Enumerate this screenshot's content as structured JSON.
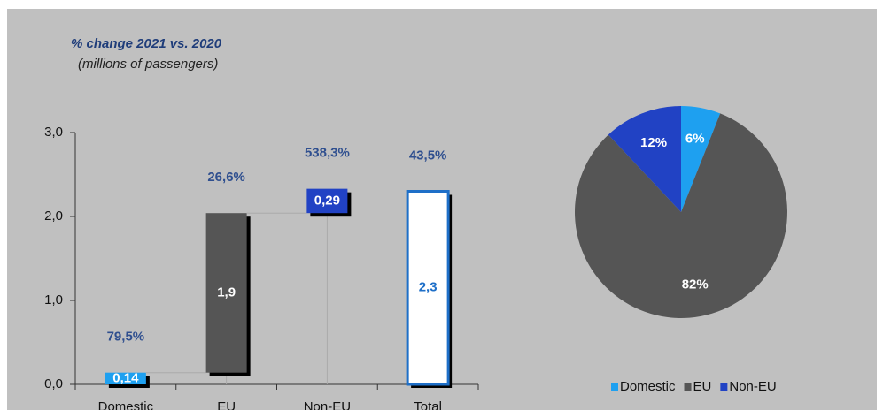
{
  "chart_data": [
    {
      "type": "waterfall",
      "title": "% change 2021 vs. 2020",
      "subtitle": "(millions of passengers)",
      "categories": [
        "Domestic",
        "EU",
        "Non-EU",
        "Total"
      ],
      "values": [
        0.14,
        1.9,
        0.29,
        2.3
      ],
      "value_labels": [
        "0,14",
        "1,9",
        "0,29",
        "2,3"
      ],
      "annotations": [
        "79,5%",
        "26,6%",
        "538,3%",
        "43,5%"
      ],
      "colors": [
        "#1ea0f0",
        "#555555",
        "#2142c4",
        "#ffffff"
      ],
      "ylim": [
        0,
        3
      ],
      "yticks": [
        {
          "value": 0,
          "label": "0,0"
        },
        {
          "value": 1,
          "label": "1,0"
        },
        {
          "value": 2,
          "label": "2,0"
        },
        {
          "value": 3,
          "label": "3,0"
        }
      ]
    },
    {
      "type": "pie",
      "categories": [
        "Domestic",
        "EU",
        "Non-EU"
      ],
      "values": [
        6,
        82,
        12
      ],
      "value_labels": [
        "6%",
        "82%",
        "12%"
      ],
      "colors": [
        "#1ea0f0",
        "#555555",
        "#2142c4"
      ],
      "legend": "bottom"
    }
  ]
}
